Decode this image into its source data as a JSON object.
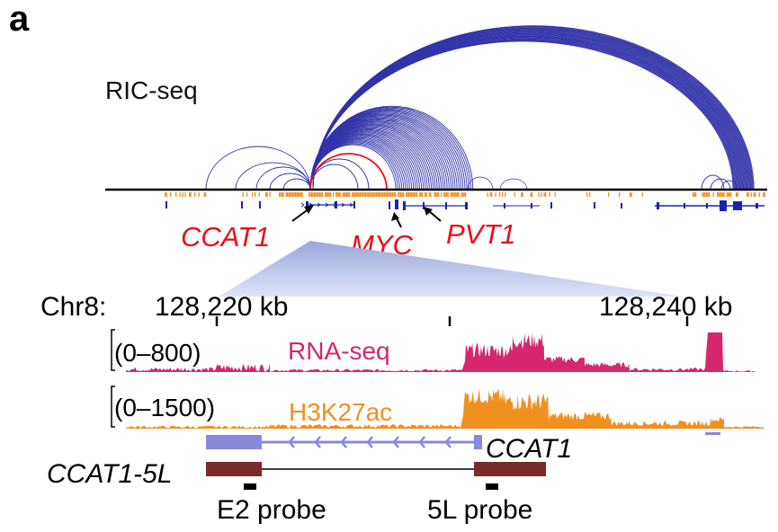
{
  "panel_label": "a",
  "ric_label": "RIC-seq",
  "genes": {
    "ccat1": "CCAT1",
    "myc": "MYC",
    "pvt1": "PVT1"
  },
  "coordinates": {
    "chr_label": "Chr8:",
    "left": "128,220 kb",
    "right": "128,240 kb"
  },
  "tracks": {
    "rna": {
      "range": "(0–800)",
      "name": "RNA-seq"
    },
    "h3k": {
      "range": "(0–1500)",
      "name": "H3K27ac"
    }
  },
  "transcripts": {
    "ccat1": "CCAT1",
    "ccat1_5l": "CCAT1-5L"
  },
  "probes": {
    "e2": "E2 probe",
    "l5": "5L probe"
  },
  "colors": {
    "arc_blue": "#3333aa",
    "arc_red": "#ee1111",
    "label_red": "#e8101a",
    "rna": "#d6266e",
    "h3k": "#f0901e",
    "ccat1_exon": "#8888dd",
    "ccat1_5l_exon": "#7a2a2a",
    "gene_blue": "#1a23b0"
  }
}
